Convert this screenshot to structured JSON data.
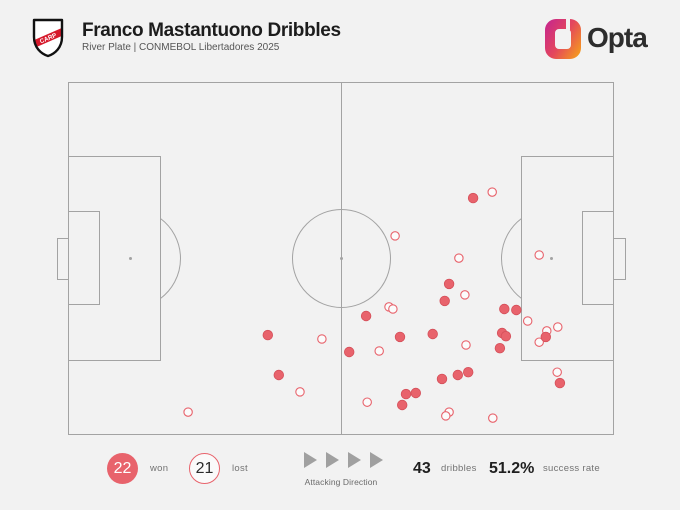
{
  "header": {
    "title": "Franco Mastantuono Dribbles",
    "subtitle": "River Plate | CONMEBOL Libertadores 2025",
    "crest": {
      "icon": "river-plate-crest-icon",
      "letters": "CARP"
    },
    "logo": {
      "icon": "opta-logo-icon",
      "text": "Opta"
    }
  },
  "colors": {
    "background": "#f2f2f2",
    "pitch_lines": "#a3a3a3",
    "accent": "#e8636c",
    "text": "#1f1f1f",
    "muted_text": "#737373"
  },
  "legend": {
    "won_count": 22,
    "lost_count": 21,
    "direction": {
      "icon": "play-arrow-icon",
      "label": "Attacking Direction"
    },
    "total": {
      "value": 43,
      "label": "dribbles"
    },
    "success": {
      "value": "51.2%",
      "label": "success rate"
    }
  },
  "chart_data": {
    "type": "scatter",
    "xlim": [
      0,
      100
    ],
    "ylim": [
      0,
      100
    ],
    "grid": false,
    "legend_position": "bottom",
    "series": [
      {
        "name": "won",
        "marker": "filled",
        "color": "#e8636c",
        "points": [
          [
            74.2,
            67.1
          ],
          [
            69.8,
            42.8
          ],
          [
            69.0,
            38.0
          ],
          [
            79.9,
            35.7
          ],
          [
            82.1,
            35.4
          ],
          [
            54.6,
            33.7
          ],
          [
            36.6,
            28.3
          ],
          [
            66.8,
            28.6
          ],
          [
            60.8,
            27.8
          ],
          [
            79.5,
            28.9
          ],
          [
            80.2,
            28.0
          ],
          [
            87.5,
            27.8
          ],
          [
            51.5,
            23.5
          ],
          [
            79.1,
            24.6
          ],
          [
            38.6,
            17.0
          ],
          [
            73.3,
            17.8
          ],
          [
            71.4,
            17.0
          ],
          [
            68.5,
            15.9
          ],
          [
            63.7,
            11.9
          ],
          [
            61.9,
            11.6
          ],
          [
            61.2,
            8.5
          ],
          [
            90.1,
            14.7
          ]
        ]
      },
      {
        "name": "lost",
        "marker": "hollow",
        "color": "#e8636c",
        "points": [
          [
            77.7,
            68.8
          ],
          [
            59.9,
            56.4
          ],
          [
            71.6,
            50.1
          ],
          [
            86.3,
            51.0
          ],
          [
            72.7,
            39.7
          ],
          [
            58.8,
            36.3
          ],
          [
            59.5,
            35.7
          ],
          [
            84.2,
            32.3
          ],
          [
            89.7,
            30.6
          ],
          [
            87.7,
            29.5
          ],
          [
            86.3,
            26.3
          ],
          [
            46.5,
            27.2
          ],
          [
            72.9,
            25.5
          ],
          [
            57.0,
            23.8
          ],
          [
            89.6,
            17.8
          ],
          [
            42.5,
            12.2
          ],
          [
            22.0,
            6.5
          ],
          [
            54.8,
            9.3
          ],
          [
            69.8,
            6.5
          ],
          [
            69.2,
            5.4
          ],
          [
            77.8,
            4.8
          ]
        ]
      }
    ]
  }
}
